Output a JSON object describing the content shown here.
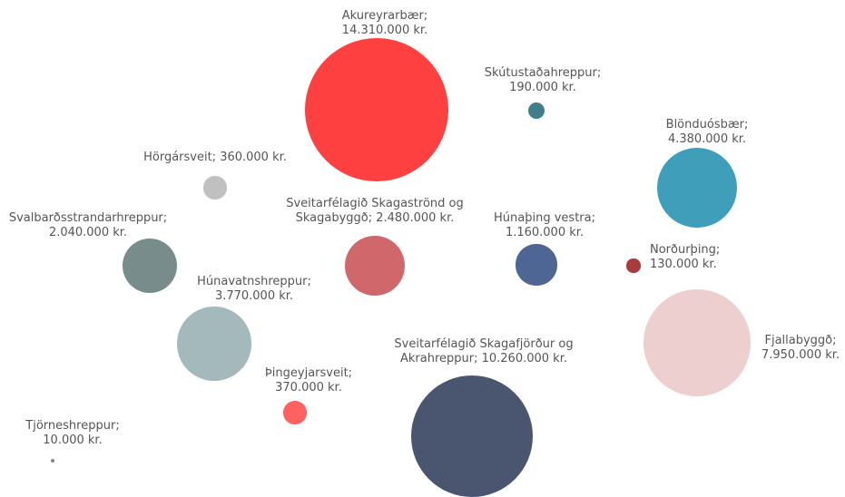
{
  "chart_data": {
    "type": "bubble",
    "value_labels": [
      "Akureyrarbær; 14.310.000 kr.",
      "Skútustaðahreppur; 190.000 kr.",
      "Blönduósbær; 4.380.000 kr.",
      "Hörgársveit; 360.000 kr.",
      "Sveitarfélagið Skagaströnd og Skagabyggð; 2.480.000 kr.",
      "Húnaþing vestra; 1.160.000 kr.",
      "Svalbarðsstrandarhreppur; 2.040.000 kr.",
      "Norðurþing; 130.000 kr.",
      "Húnavatnshreppur; 3.770.000 kr.",
      "Fjallabyggð; 7.950.000 kr.",
      "Sveitarfélagið Skagafjörður og Akrahreppur; 10.260.000 kr.",
      "Þingeyjarsveit; 370.000 kr.",
      "Tjörneshreppur; 10.000 kr."
    ],
    "values": [
      14310000,
      190000,
      4380000,
      360000,
      2480000,
      1160000,
      2040000,
      130000,
      3770000,
      7950000,
      10260000,
      370000,
      10000
    ],
    "colors": [
      "#ff4040",
      "#3f7f8c",
      "#3f9fbb",
      "#c0c0c0",
      "#d0676a",
      "#4e6693",
      "#788c8c",
      "#aa3b3b",
      "#a3b9bb",
      "#edcfd0",
      "#4a5670",
      "#ff6060",
      "#888888"
    ]
  }
}
